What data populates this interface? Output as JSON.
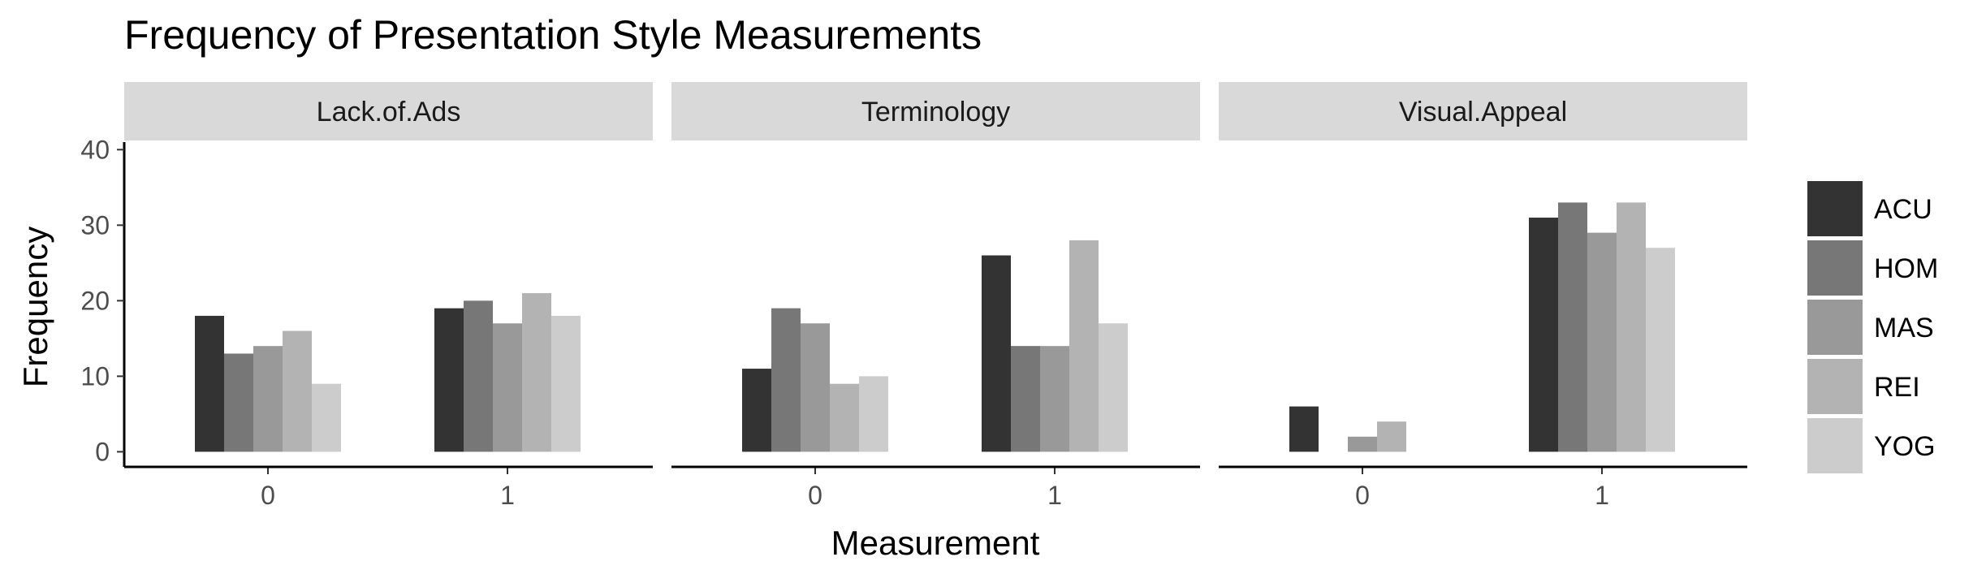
{
  "chart_data": {
    "type": "bar",
    "title": "Frequency of Presentation Style Measurements",
    "xlabel": "Measurement",
    "ylabel": "Frequency",
    "ylim": [
      -2,
      41
    ],
    "yticks": [
      0,
      10,
      20,
      30,
      40
    ],
    "categories": [
      "0",
      "1"
    ],
    "grid": false,
    "legend_position": "right",
    "series_names": [
      "ACU",
      "HOM",
      "MAS",
      "REI",
      "YOG"
    ],
    "colors": [
      "#333333",
      "#777777",
      "#999999",
      "#b3b3b3",
      "#cccccc"
    ],
    "panels": [
      {
        "label": "Lack.of.Ads",
        "values": {
          "0": [
            18,
            13,
            14,
            16,
            9
          ],
          "1": [
            19,
            20,
            17,
            21,
            18
          ]
        }
      },
      {
        "label": "Terminology",
        "values": {
          "0": [
            11,
            19,
            17,
            9,
            10
          ],
          "1": [
            26,
            14,
            14,
            28,
            17
          ]
        }
      },
      {
        "label": "Visual.Appeal",
        "values": {
          "0": [
            6,
            0,
            2,
            4,
            0
          ],
          "1": [
            31,
            33,
            29,
            33,
            27
          ]
        }
      }
    ]
  }
}
